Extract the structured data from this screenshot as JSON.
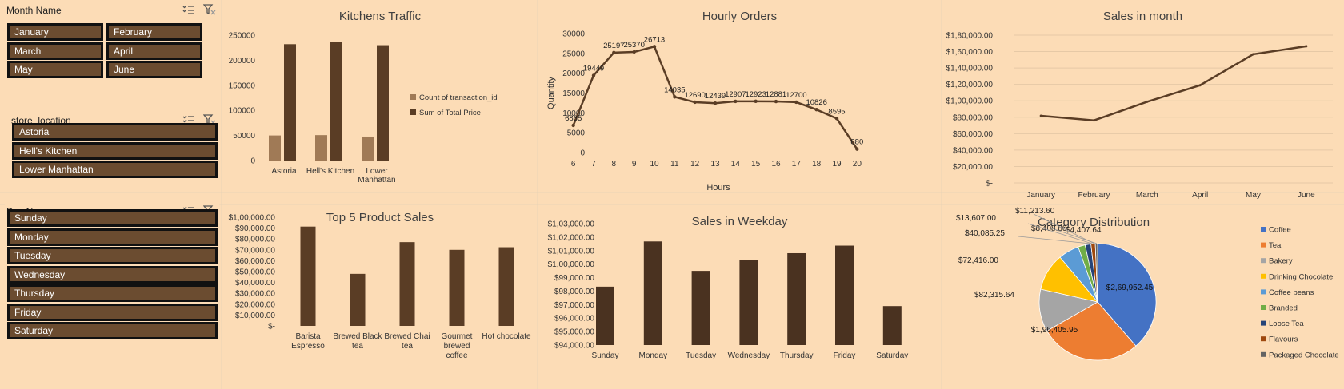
{
  "slicers": {
    "month": {
      "title": "Month Name",
      "items": [
        "January",
        "February",
        "March",
        "April",
        "May",
        "June"
      ]
    },
    "store": {
      "title": "store_location",
      "items": [
        "Astoria",
        "Hell's Kitchen",
        "Lower Manhattan"
      ]
    },
    "day": {
      "title": "Day Name",
      "items": [
        "Sunday",
        "Monday",
        "Tuesday",
        "Wednesday",
        "Thursday",
        "Friday",
        "Saturday"
      ]
    }
  },
  "chart_data": [
    {
      "id": "kitchens",
      "type": "bar",
      "title": "Kitchens Traffic",
      "categories": [
        "Astoria",
        "Hell's Kitchen",
        "Lower Manhattan"
      ],
      "series": [
        {
          "name": "Count of transaction_id",
          "values": [
            50000,
            50700,
            47800
          ],
          "color": "#a07a56"
        },
        {
          "name": "Sum of Total Price",
          "values": [
            232000,
            236000,
            230000
          ],
          "color": "#5a3d25"
        }
      ],
      "ylim": [
        0,
        250000
      ],
      "yticks": [
        "0",
        "50000",
        "100000",
        "150000",
        "200000",
        "250000"
      ],
      "legend": "right"
    },
    {
      "id": "hourly",
      "type": "line",
      "title": "Hourly Orders",
      "x": [
        6,
        7,
        8,
        9,
        10,
        11,
        12,
        13,
        14,
        15,
        16,
        17,
        18,
        19,
        20
      ],
      "values": [
        6865,
        19449,
        25197,
        25370,
        26713,
        14035,
        12690,
        12439,
        12907,
        12923,
        12881,
        12700,
        10826,
        8595,
        880
      ],
      "labels": [
        "6865",
        "19449",
        "25197",
        "25370",
        "26713",
        "14035",
        "12690",
        "12439",
        "12907",
        "12923",
        "12881",
        "12700",
        "10826",
        "8595",
        "880"
      ],
      "xlabel": "Hours",
      "ylabel": "Quantity",
      "ylim": [
        0,
        30000
      ],
      "yticks": [
        "0",
        "5000",
        "10000",
        "15000",
        "20000",
        "25000",
        "30000"
      ],
      "color": "#5a3d25"
    },
    {
      "id": "month",
      "type": "line",
      "title": "Sales in month",
      "categories": [
        "January",
        "February",
        "March",
        "April",
        "May",
        "June"
      ],
      "values": [
        81678,
        76145,
        98834,
        118941,
        156728,
        166486
      ],
      "ylim": [
        0,
        180000
      ],
      "yticks": [
        "$-",
        "$20,000.00",
        "$40,000.00",
        "$60,000.00",
        "$80,000.00",
        "$1,00,000.00",
        "$1,20,000.00",
        "$1,40,000.00",
        "$1,60,000.00",
        "$1,80,000.00"
      ],
      "color": "#5a3d25"
    },
    {
      "id": "top5",
      "type": "bar",
      "title": "Top 5 Product Sales",
      "categories": [
        "Barista Espresso",
        "Brewed Black tea",
        "Brewed Chai tea",
        "Gourmet brewed coffee",
        "Hot chocolate"
      ],
      "values": [
        91400,
        47900,
        77100,
        70000,
        72400
      ],
      "ylim": [
        0,
        100000
      ],
      "yticks": [
        "$-",
        "$10,000.00",
        "$20,000.00",
        "$30,000.00",
        "$40,000.00",
        "$50,000.00",
        "$60,000.00",
        "$70,000.00",
        "$80,000.00",
        "$90,000.00",
        "$1,00,000.00"
      ],
      "color": "#5a3d25"
    },
    {
      "id": "weekday",
      "type": "bar",
      "title": "Sales in Weekday",
      "categories": [
        "Sunday",
        "Monday",
        "Tuesday",
        "Wednesday",
        "Thursday",
        "Friday",
        "Saturday"
      ],
      "values": [
        98330,
        101680,
        99500,
        100300,
        100810,
        101370,
        96890
      ],
      "ylim": [
        94000,
        103000
      ],
      "yticks": [
        "$94,000.00",
        "$95,000.00",
        "$96,000.00",
        "$97,000.00",
        "$98,000.00",
        "$99,000.00",
        "$1,00,000.00",
        "$1,01,000.00",
        "$1,02,000.00",
        "$1,03,000.00"
      ],
      "color": "#4a3220"
    },
    {
      "id": "category",
      "type": "pie",
      "title": "Category Distribution",
      "categories": [
        "Coffee",
        "Tea",
        "Bakery",
        "Drinking Chocolate",
        "Coffee beans",
        "Branded",
        "Loose Tea",
        "Flavours",
        "Packaged Chocolate"
      ],
      "values": [
        269952.45,
        196405.95,
        82315.64,
        72416.0,
        40085.25,
        13607.0,
        11213.6,
        8408.8,
        4407.64
      ],
      "labels": [
        "$2,69,952.45",
        "$1,96,405.95",
        "$82,315.64",
        "$72,416.00",
        "$40,085.25",
        "$13,607.00",
        "$11,213.60",
        "$8,408.80",
        "$4,407.64"
      ],
      "colors": [
        "#4472c4",
        "#ed7d31",
        "#a5a5a5",
        "#ffc000",
        "#5b9bd5",
        "#70ad47",
        "#264478",
        "#9e480e",
        "#636363"
      ],
      "legend": "right"
    }
  ]
}
